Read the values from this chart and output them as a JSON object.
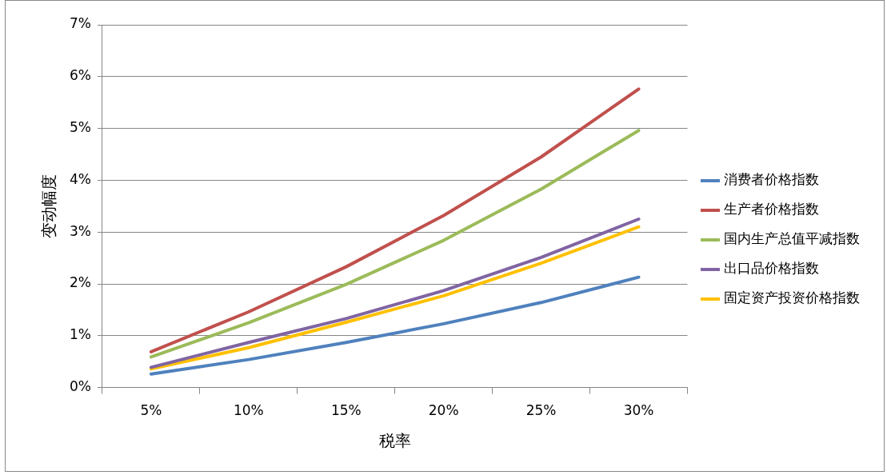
{
  "chart_data": {
    "type": "line",
    "xlabel": "税率",
    "ylabel": "变动幅度",
    "categories": [
      "5%",
      "10%",
      "15%",
      "20%",
      "25%",
      "30%"
    ],
    "ylim": [
      0,
      7
    ],
    "yticks": [
      {
        "value": 0,
        "label": "0%"
      },
      {
        "value": 1,
        "label": "1%"
      },
      {
        "value": 2,
        "label": "2%"
      },
      {
        "value": 3,
        "label": "3%"
      },
      {
        "value": 4,
        "label": "4%"
      },
      {
        "value": 5,
        "label": "5%"
      },
      {
        "value": 6,
        "label": "6%"
      },
      {
        "value": 7,
        "label": "7%"
      }
    ],
    "grid": "y",
    "legend": "right",
    "marker": "none",
    "line_style": "solid",
    "series": [
      {
        "name": "消费者价格指数",
        "color": "#4f81bd",
        "values": [
          0.26,
          0.54,
          0.87,
          1.23,
          1.64,
          2.13
        ]
      },
      {
        "name": "生产者价格指数",
        "color": "#c0504d",
        "values": [
          0.69,
          1.46,
          2.33,
          3.32,
          4.45,
          5.76
        ]
      },
      {
        "name": "国内生产总值平减指数",
        "color": "#9bbb59",
        "values": [
          0.59,
          1.25,
          1.99,
          2.84,
          3.83,
          4.96
        ]
      },
      {
        "name": "出口品价格指数",
        "color": "#8064a2",
        "values": [
          0.39,
          0.87,
          1.33,
          1.87,
          2.51,
          3.25
        ]
      },
      {
        "name": "固定资产投资价格指数",
        "color": "#ffc000",
        "values": [
          0.36,
          0.77,
          1.26,
          1.77,
          2.4,
          3.1
        ]
      }
    ]
  }
}
